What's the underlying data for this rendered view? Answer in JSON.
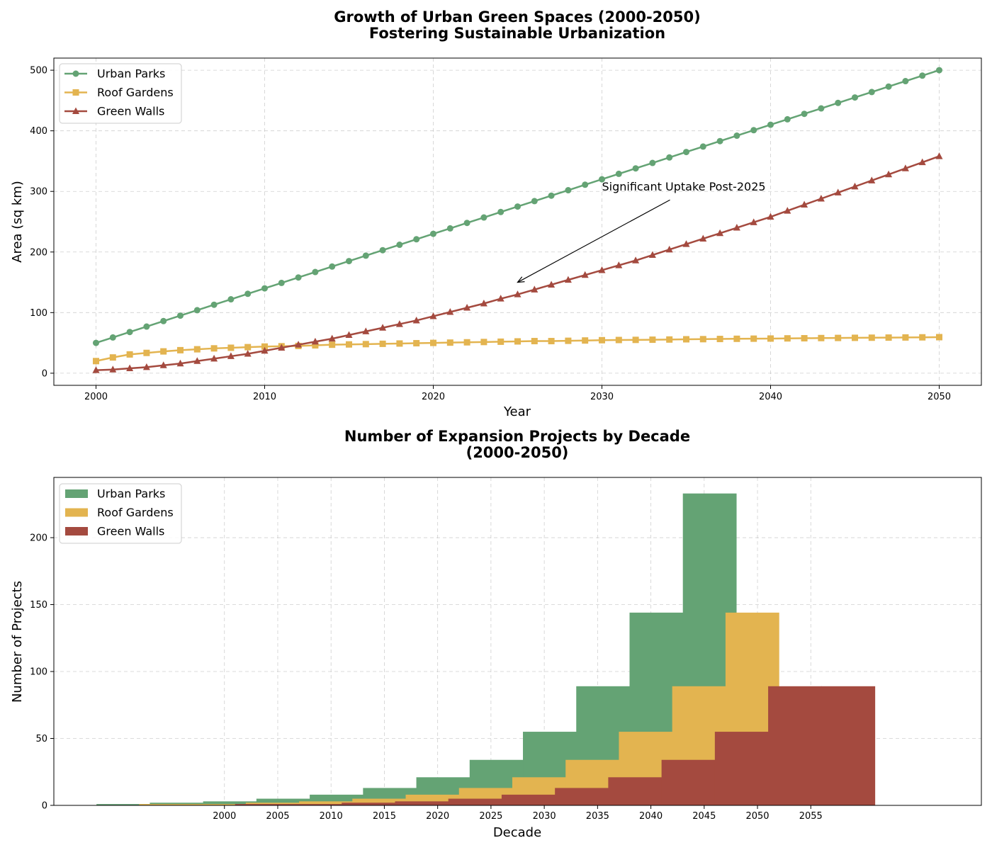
{
  "colors": {
    "urban_parks": "#64a374",
    "roof_gardens": "#e3b450",
    "green_walls": "#a44a3f"
  },
  "chart_data": [
    {
      "type": "line",
      "title_line1": "Growth of Urban Green Spaces (2000-2050)",
      "title_line2": "Fostering Sustainable Urbanization",
      "xlabel": "Year",
      "ylabel": "Area (sq km)",
      "xlim": [
        1997.5,
        2052.5
      ],
      "ylim": [
        -20,
        520
      ],
      "xticks": [
        2000,
        2010,
        2020,
        2030,
        2040,
        2050
      ],
      "yticks": [
        0,
        100,
        200,
        300,
        400,
        500
      ],
      "grid": true,
      "legend_position": "upper-left",
      "x": [
        2000,
        2001,
        2002,
        2003,
        2004,
        2005,
        2006,
        2007,
        2008,
        2009,
        2010,
        2011,
        2012,
        2013,
        2014,
        2015,
        2016,
        2017,
        2018,
        2019,
        2020,
        2021,
        2022,
        2023,
        2024,
        2025,
        2026,
        2027,
        2028,
        2029,
        2030,
        2031,
        2032,
        2033,
        2034,
        2035,
        2036,
        2037,
        2038,
        2039,
        2040,
        2041,
        2042,
        2043,
        2044,
        2045,
        2046,
        2047,
        2048,
        2049,
        2050
      ],
      "series": [
        {
          "name": "Urban Parks",
          "marker": "circle",
          "values": [
            50,
            59,
            68,
            77,
            86,
            95,
            104,
            113,
            122,
            131,
            140,
            149,
            158,
            167,
            176,
            185,
            194,
            203,
            212,
            221,
            230,
            239,
            248,
            257,
            266,
            275,
            284,
            293,
            302,
            311,
            320,
            329,
            338,
            347,
            356,
            365,
            374,
            383,
            392,
            401,
            410,
            419,
            428,
            437,
            446,
            455,
            464,
            473,
            482,
            491,
            500
          ]
        },
        {
          "name": "Roof Gardens",
          "marker": "square",
          "values": [
            20,
            26,
            31,
            33.5,
            36,
            38,
            39.5,
            41,
            42,
            43,
            44,
            44.5,
            45,
            46,
            47,
            47.5,
            48,
            48.5,
            49,
            49.5,
            50,
            50.5,
            51,
            51.5,
            52,
            52.5,
            53,
            53,
            53.5,
            54,
            54.5,
            54.8,
            55,
            55.3,
            55.6,
            56,
            56.2,
            56.5,
            56.8,
            57,
            57.2,
            57.5,
            57.7,
            58,
            58.2,
            58.4,
            58.6,
            58.8,
            59,
            59.2,
            59.5
          ]
        },
        {
          "name": "Green Walls",
          "marker": "triangle",
          "values": [
            5,
            6,
            8,
            10,
            13,
            16,
            20,
            24,
            28,
            32,
            37,
            42,
            47,
            52,
            57,
            63,
            69,
            75,
            81,
            87,
            94,
            101,
            108,
            115,
            123,
            130,
            138,
            146,
            154,
            162,
            170,
            178,
            186,
            195,
            204,
            213,
            222,
            231,
            240,
            249,
            258,
            268,
            278,
            288,
            298,
            308,
            318,
            328,
            338,
            348,
            358
          ]
        }
      ],
      "annotation": {
        "text": "Significant Uptake Post-2025",
        "text_x": 2030,
        "text_y": 300,
        "arrow_x": 2025,
        "arrow_y": 150
      }
    },
    {
      "type": "bar",
      "title_line1": "Number of Expansion Projects by Decade",
      "title_line2": "(2000-2050)",
      "xlabel": "Decade",
      "ylabel": "Number of Projects",
      "xlim": [
        1984,
        2071
      ],
      "ylim": [
        0,
        245
      ],
      "xticks": [
        2000,
        2005,
        2010,
        2015,
        2020,
        2025,
        2030,
        2035,
        2040,
        2045,
        2050,
        2055
      ],
      "yticks": [
        0,
        50,
        100,
        150,
        200
      ],
      "grid": true,
      "legend_position": "upper-left",
      "bar_width": 5,
      "series": [
        {
          "name": "Urban Parks",
          "x_start": 1988,
          "values": [
            1,
            2,
            3,
            5,
            8,
            13,
            21,
            34,
            55,
            89,
            144,
            233
          ]
        },
        {
          "name": "Roof Gardens",
          "x_start": 1992,
          "values": [
            1,
            1,
            2,
            3,
            5,
            8,
            13,
            21,
            34,
            55,
            89,
            144
          ]
        },
        {
          "name": "Green Walls",
          "x_start": 1996,
          "values": [
            0,
            1,
            1,
            2,
            3,
            5,
            8,
            13,
            21,
            34,
            55,
            89,
            89
          ]
        }
      ]
    }
  ]
}
